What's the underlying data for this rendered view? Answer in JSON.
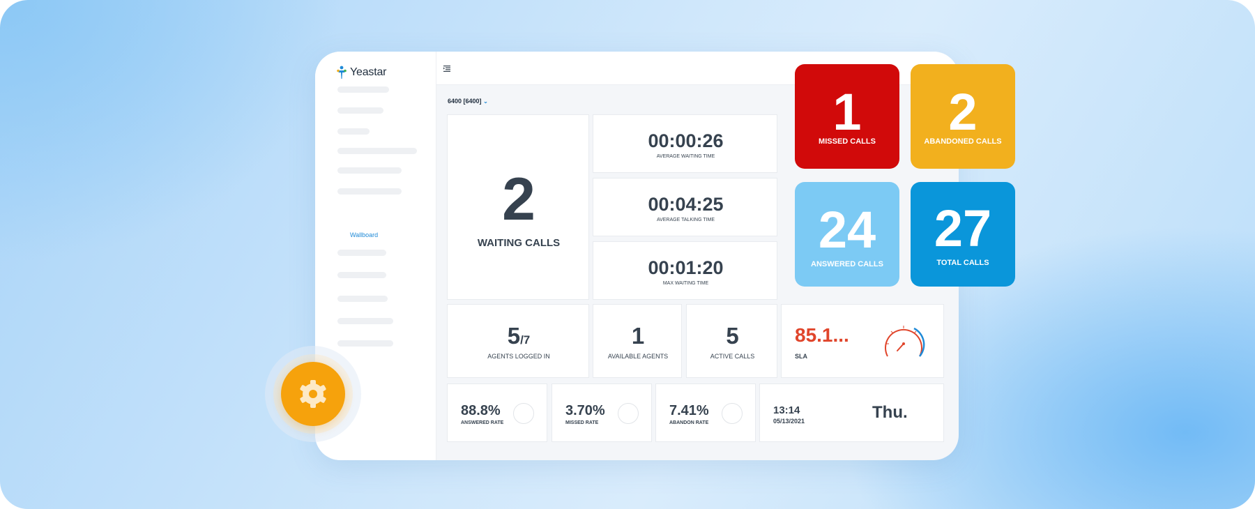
{
  "app": {
    "logo_text": "Yeastar"
  },
  "sidebar": {
    "active_item": "Wallboard"
  },
  "queue": {
    "selected": "6400 [6400]"
  },
  "waiting": {
    "value": "2",
    "label": "WAITING CALLS"
  },
  "times": [
    {
      "value": "00:00:26",
      "label": "AVERAGE WAITING TIME"
    },
    {
      "value": "00:04:25",
      "label": "AVERAGE TALKING TIME"
    },
    {
      "value": "00:01:20",
      "label": "MAX WAITING TIME"
    }
  ],
  "agents": {
    "logged_in": "5",
    "total": "/7",
    "label": "AGENTS LOGGED IN"
  },
  "available": {
    "value": "1",
    "label": "AVAILABLE AGENTS"
  },
  "active": {
    "value": "5",
    "label": "ACTIVE CALLS"
  },
  "sla": {
    "value": "85.1...",
    "label": "SLA"
  },
  "rates": [
    {
      "value": "88.8%",
      "label": "ANSWERED RATE"
    },
    {
      "value": "3.70%",
      "label": "MISSED RATE"
    },
    {
      "value": "7.41%",
      "label": "ABANDON RATE"
    }
  ],
  "clock": {
    "time": "13:14",
    "date": "05/13/2021",
    "day": "Thu."
  },
  "tiles": [
    {
      "value": "1",
      "label": "MISSED CALLS",
      "color": "#d10a0a"
    },
    {
      "value": "2",
      "label": "ABANDONED CALLS",
      "color": "#f2b01e"
    },
    {
      "value": "24",
      "label": "ANSWERED CALLS",
      "color": "#7ccaf4"
    },
    {
      "value": "27",
      "label": "TOTAL CALLS",
      "color": "#0a96da"
    }
  ],
  "colors": {
    "gear": "#f6a20c",
    "sla_red": "#e0452b",
    "accent_blue": "#1f8ad7"
  }
}
